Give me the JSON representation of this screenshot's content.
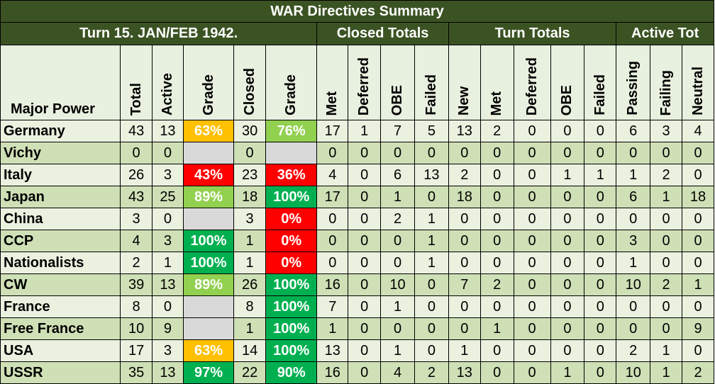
{
  "title": "WAR Directives Summary",
  "turn_label": "Turn 15.  JAN/FEB 1942.",
  "groups": {
    "closed": "Closed Totals",
    "turn": "Turn Totals",
    "active": "Active Tot"
  },
  "columns": [
    "Major Power",
    "Total",
    "Active",
    "Grade",
    "Closed",
    "Grade",
    "Met",
    "Deferred",
    "OBE",
    "Failed",
    "New",
    "Met",
    "Deferred",
    "OBE",
    "Failed",
    "Passing",
    "Failing",
    "Neutral"
  ],
  "grade_colors": {
    "orange": "#ffc000",
    "red": "#ff0000",
    "lime": "#92d050",
    "green": "#00b050"
  },
  "rows": [
    {
      "power": "Germany",
      "total": "43",
      "active": "13",
      "grade_active": "63%",
      "closed": "30",
      "grade_closed": "76%",
      "closed_met": "17",
      "closed_deferred": "1",
      "closed_obe": "7",
      "closed_failed": "5",
      "turn_new": "13",
      "turn_met": "2",
      "turn_deferred": "0",
      "turn_obe": "0",
      "turn_failed": "0",
      "passing": "6",
      "failing": "3",
      "neutral": "4"
    },
    {
      "power": "Vichy",
      "total": "0",
      "active": "0",
      "grade_active": "",
      "closed": "0",
      "grade_closed": "",
      "closed_met": "0",
      "closed_deferred": "0",
      "closed_obe": "0",
      "closed_failed": "0",
      "turn_new": "0",
      "turn_met": "0",
      "turn_deferred": "0",
      "turn_obe": "0",
      "turn_failed": "0",
      "passing": "0",
      "failing": "0",
      "neutral": "0"
    },
    {
      "power": "Italy",
      "total": "26",
      "active": "3",
      "grade_active": "43%",
      "closed": "23",
      "grade_closed": "36%",
      "closed_met": "4",
      "closed_deferred": "0",
      "closed_obe": "6",
      "closed_failed": "13",
      "turn_new": "2",
      "turn_met": "0",
      "turn_deferred": "0",
      "turn_obe": "1",
      "turn_failed": "1",
      "passing": "1",
      "failing": "2",
      "neutral": "0"
    },
    {
      "power": "Japan",
      "total": "43",
      "active": "25",
      "grade_active": "89%",
      "closed": "18",
      "grade_closed": "100%",
      "closed_met": "17",
      "closed_deferred": "0",
      "closed_obe": "1",
      "closed_failed": "0",
      "turn_new": "18",
      "turn_met": "0",
      "turn_deferred": "0",
      "turn_obe": "0",
      "turn_failed": "0",
      "passing": "6",
      "failing": "1",
      "neutral": "18"
    },
    {
      "power": "China",
      "total": "3",
      "active": "0",
      "grade_active": "",
      "closed": "3",
      "grade_closed": "0%",
      "closed_met": "0",
      "closed_deferred": "0",
      "closed_obe": "2",
      "closed_failed": "1",
      "turn_new": "0",
      "turn_met": "0",
      "turn_deferred": "0",
      "turn_obe": "0",
      "turn_failed": "0",
      "passing": "0",
      "failing": "0",
      "neutral": "0"
    },
    {
      "power": "CCP",
      "total": "4",
      "active": "3",
      "grade_active": "100%",
      "closed": "1",
      "grade_closed": "0%",
      "closed_met": "0",
      "closed_deferred": "0",
      "closed_obe": "0",
      "closed_failed": "1",
      "turn_new": "0",
      "turn_met": "0",
      "turn_deferred": "0",
      "turn_obe": "0",
      "turn_failed": "0",
      "passing": "3",
      "failing": "0",
      "neutral": "0"
    },
    {
      "power": "Nationalists",
      "total": "2",
      "active": "1",
      "grade_active": "100%",
      "closed": "1",
      "grade_closed": "0%",
      "closed_met": "0",
      "closed_deferred": "0",
      "closed_obe": "0",
      "closed_failed": "1",
      "turn_new": "0",
      "turn_met": "0",
      "turn_deferred": "0",
      "turn_obe": "0",
      "turn_failed": "0",
      "passing": "1",
      "failing": "0",
      "neutral": "0"
    },
    {
      "power": "CW",
      "total": "39",
      "active": "13",
      "grade_active": "89%",
      "closed": "26",
      "grade_closed": "100%",
      "closed_met": "16",
      "closed_deferred": "0",
      "closed_obe": "10",
      "closed_failed": "0",
      "turn_new": "7",
      "turn_met": "2",
      "turn_deferred": "0",
      "turn_obe": "0",
      "turn_failed": "0",
      "passing": "10",
      "failing": "2",
      "neutral": "1"
    },
    {
      "power": "France",
      "total": "8",
      "active": "0",
      "grade_active": "",
      "closed": "8",
      "grade_closed": "100%",
      "closed_met": "7",
      "closed_deferred": "0",
      "closed_obe": "1",
      "closed_failed": "0",
      "turn_new": "0",
      "turn_met": "0",
      "turn_deferred": "0",
      "turn_obe": "0",
      "turn_failed": "0",
      "passing": "0",
      "failing": "0",
      "neutral": "0"
    },
    {
      "power": "Free France",
      "total": "10",
      "active": "9",
      "grade_active": "",
      "closed": "1",
      "grade_closed": "100%",
      "closed_met": "1",
      "closed_deferred": "0",
      "closed_obe": "0",
      "closed_failed": "0",
      "turn_new": "0",
      "turn_met": "1",
      "turn_deferred": "0",
      "turn_obe": "0",
      "turn_failed": "0",
      "passing": "0",
      "failing": "0",
      "neutral": "9"
    },
    {
      "power": "USA",
      "total": "17",
      "active": "3",
      "grade_active": "63%",
      "closed": "14",
      "grade_closed": "100%",
      "closed_met": "13",
      "closed_deferred": "0",
      "closed_obe": "1",
      "closed_failed": "0",
      "turn_new": "1",
      "turn_met": "0",
      "turn_deferred": "0",
      "turn_obe": "0",
      "turn_failed": "0",
      "passing": "2",
      "failing": "1",
      "neutral": "0"
    },
    {
      "power": "USSR",
      "total": "35",
      "active": "13",
      "grade_active": "97%",
      "closed": "22",
      "grade_closed": "90%",
      "closed_met": "16",
      "closed_deferred": "0",
      "closed_obe": "4",
      "closed_failed": "2",
      "turn_new": "13",
      "turn_met": "0",
      "turn_deferred": "0",
      "turn_obe": "1",
      "turn_failed": "0",
      "passing": "10",
      "failing": "1",
      "neutral": "2"
    }
  ]
}
